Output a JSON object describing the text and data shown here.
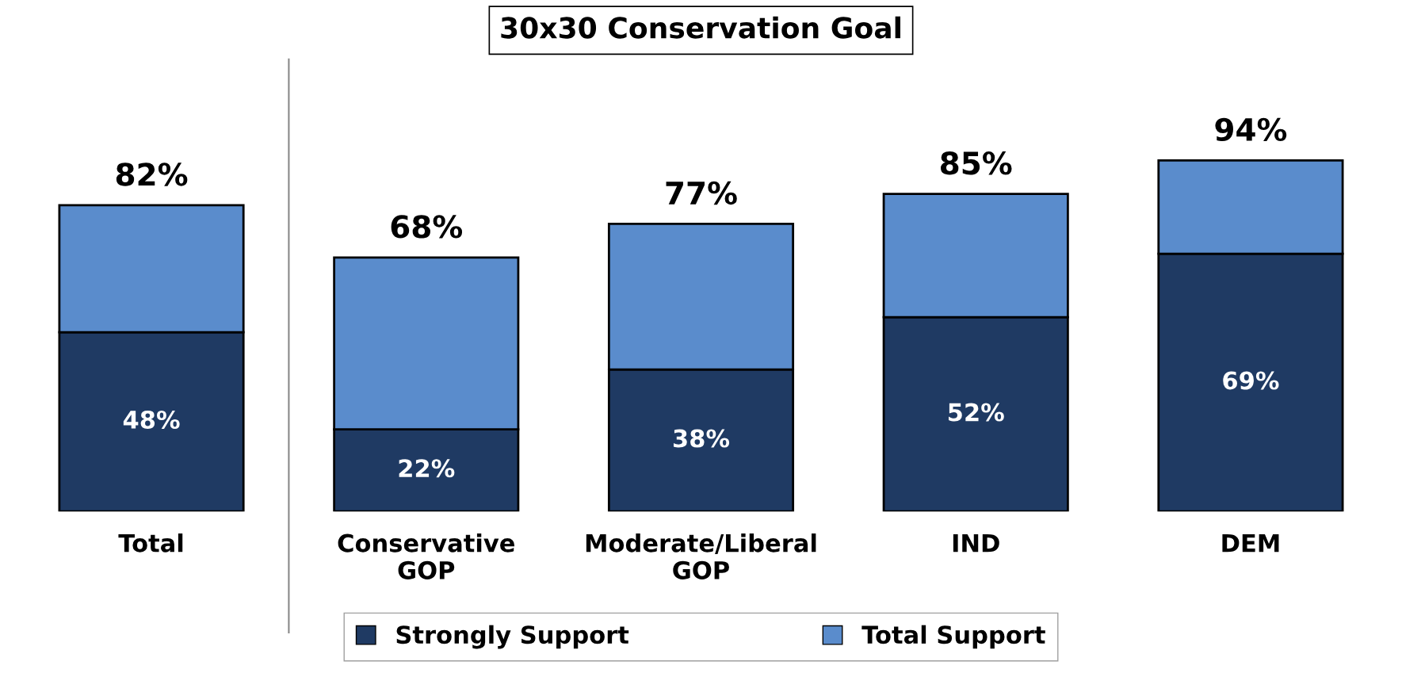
{
  "chart_data": {
    "type": "bar",
    "title": "30x30 Conservation Goal",
    "categories": [
      "Total",
      "Conservative GOP",
      "Moderate/Liberal GOP",
      "IND",
      "DEM"
    ],
    "stacked": true,
    "series": [
      {
        "name": "Strongly Support",
        "color": "#1f3a63",
        "values": [
          48,
          22,
          38,
          52,
          69
        ],
        "value_labels": [
          "48%",
          "22%",
          "38%",
          "52%",
          "69%"
        ]
      },
      {
        "name": "Total Support",
        "color": "#5a8ccc",
        "values": [
          34,
          46,
          39,
          33,
          25
        ]
      }
    ],
    "totals": [
      "82%",
      "68%",
      "77%",
      "85%",
      "94%"
    ],
    "legend": "bottom",
    "grid": false
  }
}
